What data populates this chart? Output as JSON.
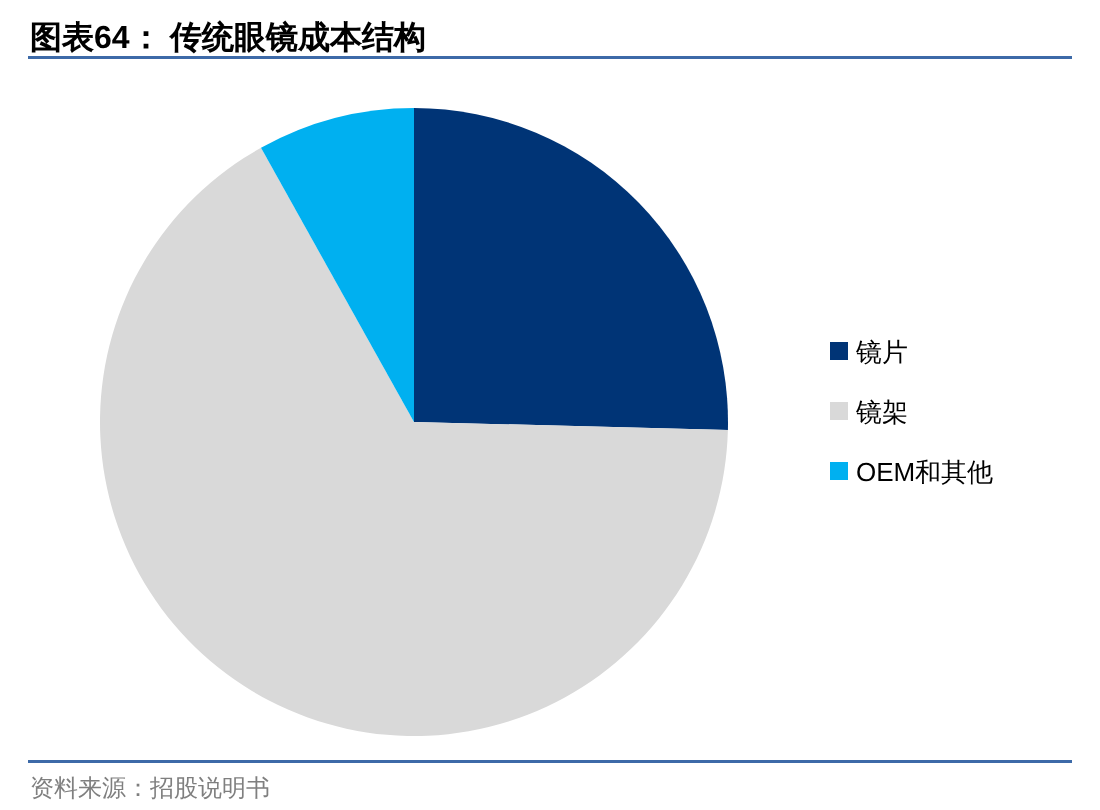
{
  "chart_data": {
    "type": "pie",
    "title": "图表64： 传统眼镜成本结构",
    "categories": [
      "镜片",
      "镜架",
      "OEM和其他"
    ],
    "values": [
      25.4,
      66.5,
      8.1
    ],
    "colors": [
      "#003476",
      "#d9d9d9",
      "#00b0f0"
    ],
    "legend": "right",
    "annotations": [
      "资料来源：招股说明书"
    ]
  }
}
